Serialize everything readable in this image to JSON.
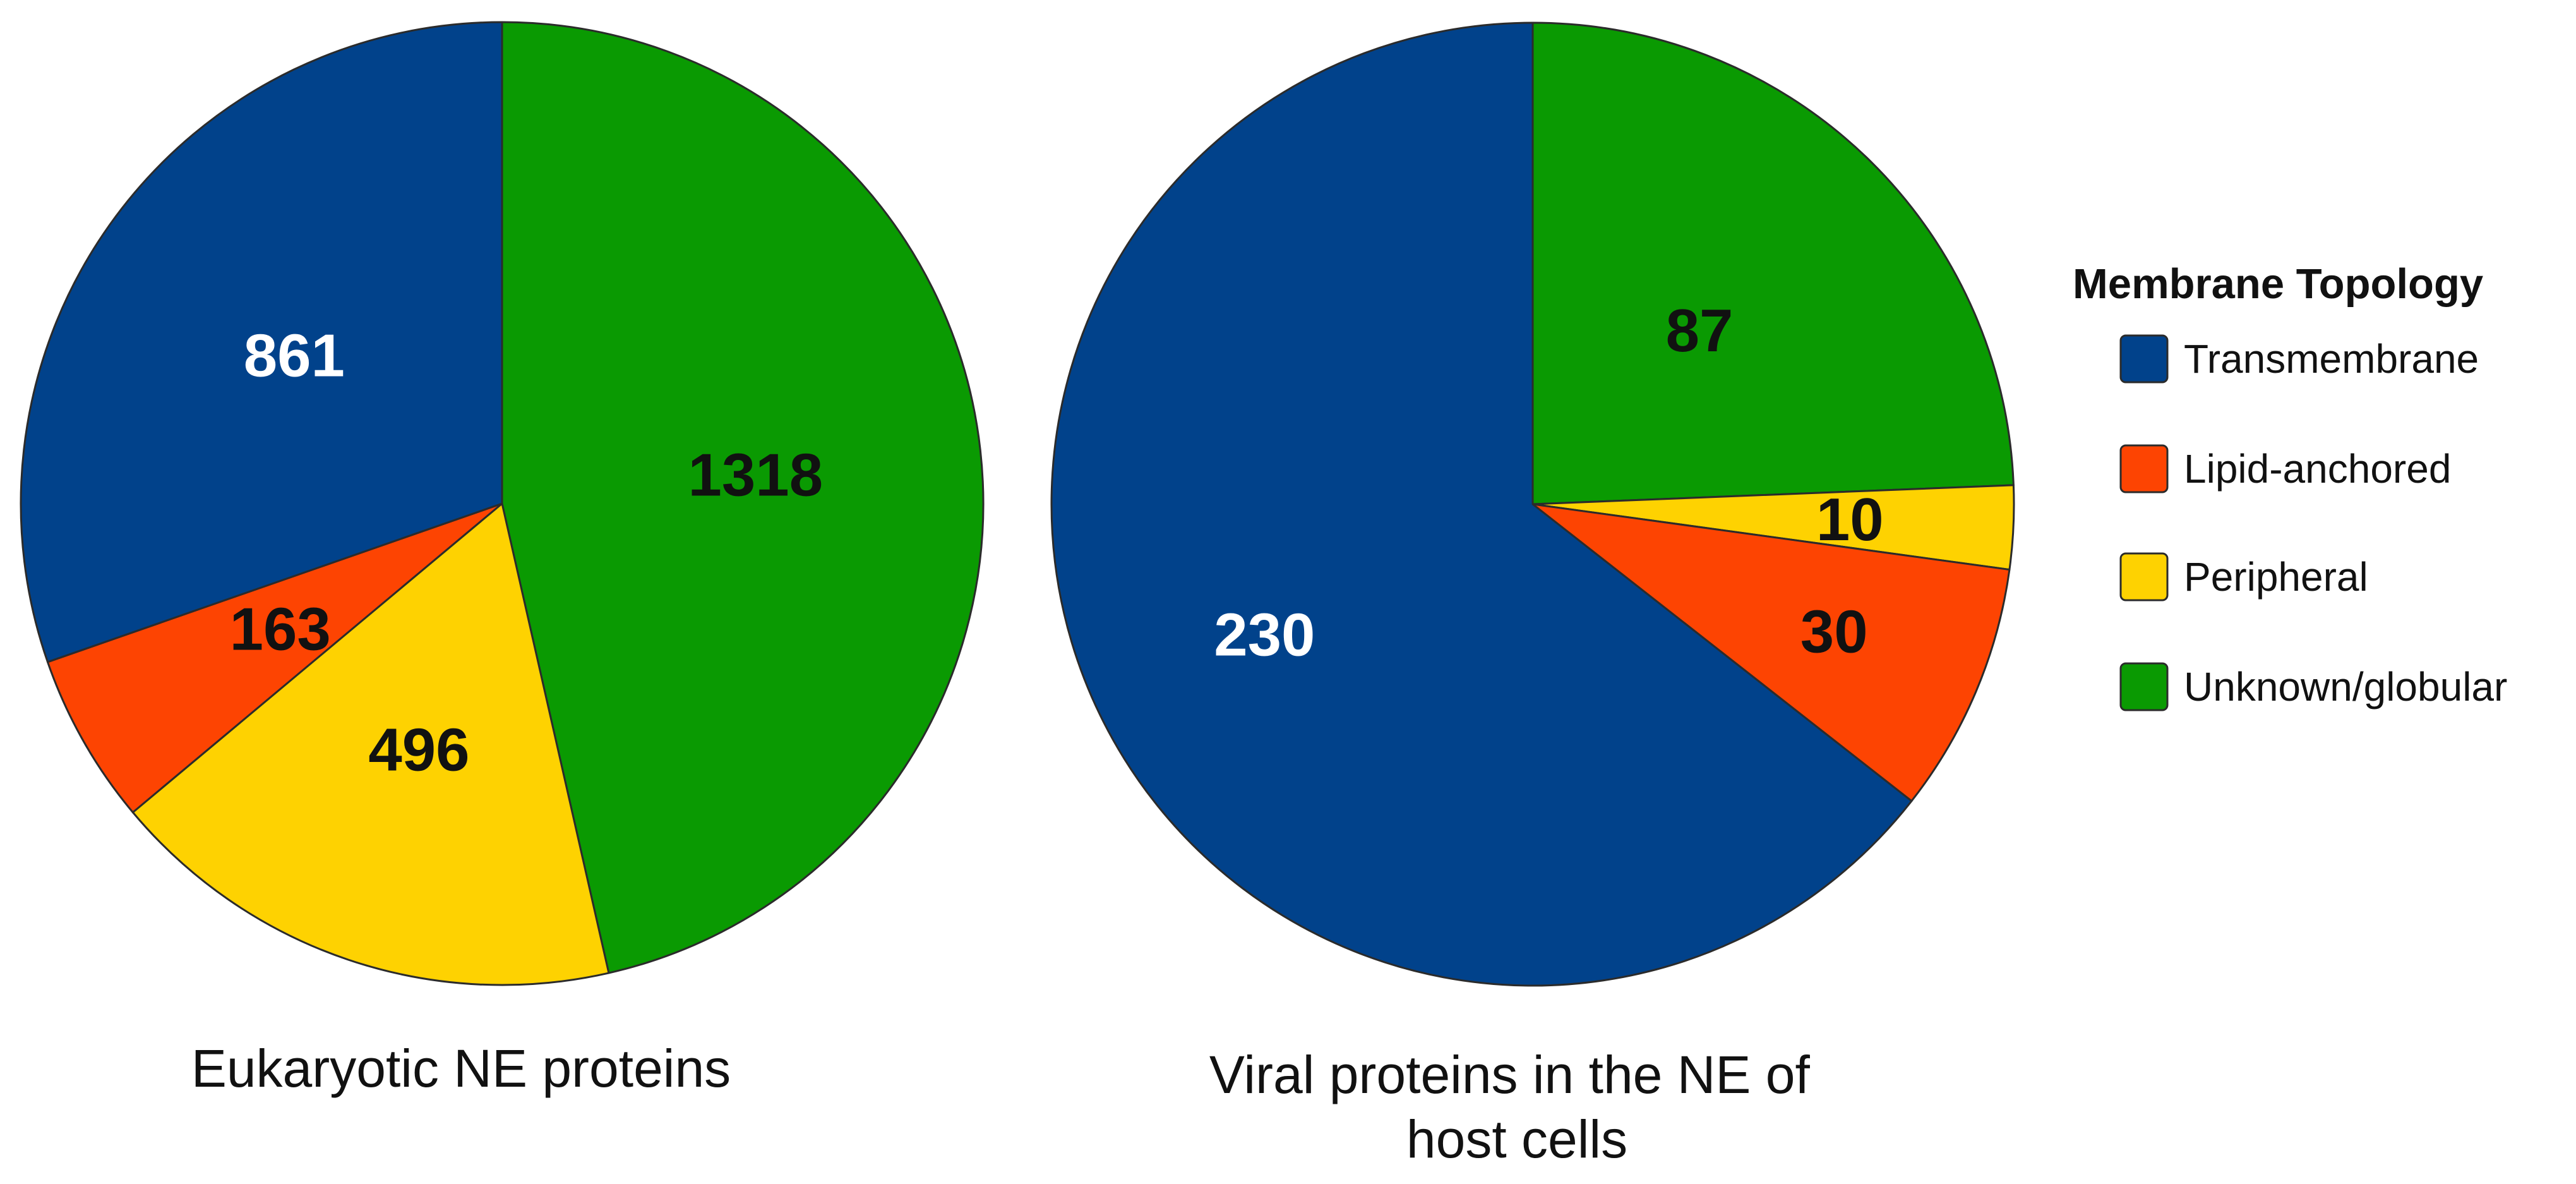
{
  "chart_data": [
    {
      "type": "pie",
      "title": "Eukaryotic NE proteins",
      "categories": [
        "Transmembrane",
        "Lipid-anchored",
        "Peripheral",
        "Unknown/globular"
      ],
      "values": [
        861,
        163,
        496,
        1318
      ],
      "labels": [
        "861",
        "163",
        "496",
        "1318"
      ],
      "slice_order_clockwise_from_top": [
        "Unknown/globular",
        "Peripheral",
        "Lipid-anchored",
        "Transmembrane"
      ]
    },
    {
      "type": "pie",
      "title": "Viral proteins in the NE of host cells",
      "title_lines": [
        "Viral proteins in the NE of",
        "host cells"
      ],
      "categories": [
        "Transmembrane",
        "Lipid-anchored",
        "Peripheral",
        "Unknown/globular"
      ],
      "values": [
        230,
        30,
        10,
        87
      ],
      "labels": [
        "230",
        "30",
        "10",
        "87"
      ],
      "slice_order_clockwise_from_top": [
        "Unknown/globular",
        "Peripheral",
        "Lipid-anchored",
        "Transmembrane"
      ]
    }
  ],
  "legend": {
    "title": "Membrane Topology",
    "items": [
      {
        "label": "Transmembrane",
        "color": "#01428b"
      },
      {
        "label": "Lipid-anchored",
        "color": "#fd4402"
      },
      {
        "label": "Peripheral",
        "color": "#fed201"
      },
      {
        "label": "Unknown/globular",
        "color": "#0a9a02"
      }
    ]
  },
  "colors": {
    "Transmembrane": "#01428b",
    "Lipid-anchored": "#fd4402",
    "Peripheral": "#fed201",
    "Unknown/globular": "#0a9a02"
  },
  "label_colors": {
    "Transmembrane": "#ffffff",
    "Lipid-anchored": "#111111",
    "Peripheral": "#111111",
    "Unknown/globular": "#111111"
  }
}
